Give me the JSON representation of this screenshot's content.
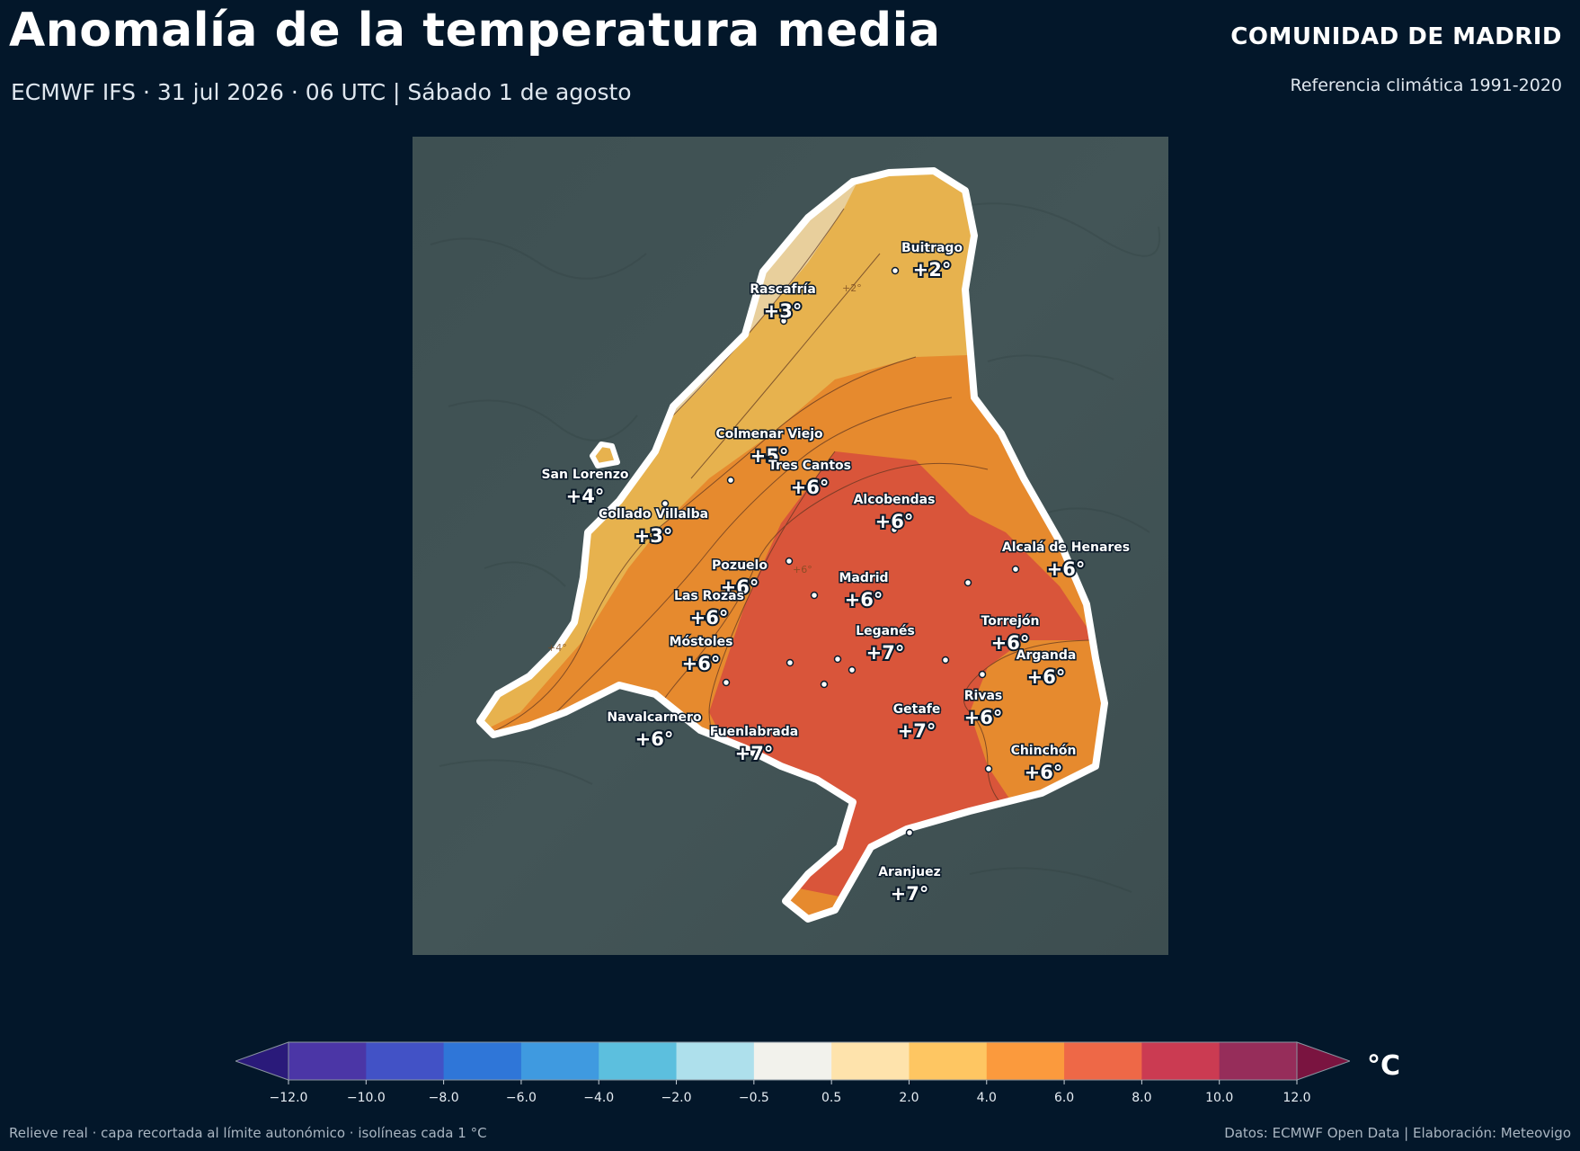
{
  "header": {
    "title": "Anomalía de la temperatura media",
    "subtitle": "ECMWF IFS · 31 jul 2026 · 06 UTC  |  Sábado 1 de agosto",
    "region": "COMUNIDAD DE MADRID",
    "reference": "Referencia climática 1991-2020"
  },
  "map": {
    "cities": [
      {
        "name": "Buitrago",
        "value": "+2°"
      },
      {
        "name": "Rascafría",
        "value": "+3°"
      },
      {
        "name": "Colmenar Viejo",
        "value": "+5°"
      },
      {
        "name": "Tres Cantos",
        "value": "+6°"
      },
      {
        "name": "San Lorenzo",
        "value": "+4°"
      },
      {
        "name": "Collado Villalba",
        "value": "+3°"
      },
      {
        "name": "Alcobendas",
        "value": "+6°"
      },
      {
        "name": "Alcalá de Henares",
        "value": "+6°"
      },
      {
        "name": "Pozuelo",
        "value": "+6°"
      },
      {
        "name": "Madrid",
        "value": "+6°"
      },
      {
        "name": "Las Rozas",
        "value": "+6°"
      },
      {
        "name": "Torrejón",
        "value": "+6°"
      },
      {
        "name": "Leganés",
        "value": "+7°"
      },
      {
        "name": "Móstoles",
        "value": "+6°"
      },
      {
        "name": "Arganda",
        "value": "+6°"
      },
      {
        "name": "Rivas",
        "value": "+6°"
      },
      {
        "name": "Getafe",
        "value": "+7°"
      },
      {
        "name": "Navalcarnero",
        "value": "+6°"
      },
      {
        "name": "Fuenlabrada",
        "value": "+7°"
      },
      {
        "name": "Chinchón",
        "value": "+6°"
      },
      {
        "name": "Aranjuez",
        "value": "+7°"
      }
    ],
    "isoline_labels": [
      "+2°",
      "+6°",
      "+4°"
    ]
  },
  "colorbar": {
    "unit": "°C",
    "ticks": [
      "−12.0",
      "−10.0",
      "−8.0",
      "−6.0",
      "−4.0",
      "−2.0",
      "−0.5",
      "0.5",
      "2.0",
      "4.0",
      "6.0",
      "8.0",
      "10.0",
      "12.0"
    ],
    "low_extend_color": "#2a1a7a",
    "high_extend_color": "#7a1440",
    "colors": [
      "#4b36a6",
      "#4252c6",
      "#2f76d8",
      "#3f9ae0",
      "#5cbfde",
      "#aee0ec",
      "#f2f2ec",
      "#fee3ac",
      "#fec662",
      "#fb9a3d",
      "#ee6847",
      "#cb3b52",
      "#962d5a"
    ]
  },
  "footer": {
    "left": "Relieve real · capa recortada al límite autonómico · isolíneas cada 1 °C",
    "right": "Datos: ECMWF Open Data | Elaboración: Meteovigo"
  }
}
